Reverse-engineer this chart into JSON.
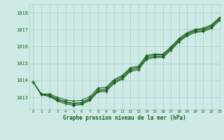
{
  "title": "Graphe pression niveau de la mer (hPa)",
  "background_color": "#ceeae6",
  "grid_color": "#aad4cc",
  "line_color": "#1a5e1a",
  "text_color": "#1a5e1a",
  "xlim": [
    -0.5,
    23
  ],
  "ylim": [
    1012.3,
    1018.5
  ],
  "yticks": [
    1013,
    1014,
    1015,
    1016,
    1017,
    1018
  ],
  "xticks": [
    0,
    1,
    2,
    3,
    4,
    5,
    6,
    7,
    8,
    9,
    10,
    11,
    12,
    13,
    14,
    15,
    16,
    17,
    18,
    19,
    20,
    21,
    22,
    23
  ],
  "series": [
    [
      1013.9,
      1013.2,
      1013.2,
      1013.0,
      1012.85,
      1012.78,
      1012.82,
      1013.05,
      1013.55,
      1013.6,
      1014.05,
      1014.3,
      1014.75,
      1014.85,
      1015.48,
      1015.55,
      1015.55,
      1015.98,
      1016.48,
      1016.82,
      1017.02,
      1017.08,
      1017.28,
      1017.72
    ],
    [
      1013.9,
      1013.2,
      1013.15,
      1012.9,
      1012.75,
      1012.65,
      1012.7,
      1012.95,
      1013.45,
      1013.5,
      1013.98,
      1014.22,
      1014.68,
      1014.78,
      1015.4,
      1015.5,
      1015.5,
      1015.92,
      1016.42,
      1016.76,
      1016.96,
      1017.02,
      1017.22,
      1017.66
    ],
    [
      1013.9,
      1013.18,
      1013.1,
      1012.85,
      1012.7,
      1012.6,
      1012.65,
      1012.88,
      1013.38,
      1013.42,
      1013.9,
      1014.15,
      1014.6,
      1014.7,
      1015.32,
      1015.42,
      1015.42,
      1015.85,
      1016.35,
      1016.7,
      1016.9,
      1016.95,
      1017.15,
      1017.6
    ],
    [
      1013.9,
      1013.15,
      1013.05,
      1012.78,
      1012.62,
      1012.52,
      1012.58,
      1012.82,
      1013.32,
      1013.35,
      1013.83,
      1014.08,
      1014.53,
      1014.63,
      1015.25,
      1015.35,
      1015.35,
      1015.78,
      1016.28,
      1016.63,
      1016.83,
      1016.88,
      1017.08,
      1017.53
    ]
  ],
  "series_markers": [
    "s",
    "+",
    "D",
    "v"
  ],
  "marker_sizes": [
    2.5,
    3.5,
    2.0,
    2.0
  ]
}
